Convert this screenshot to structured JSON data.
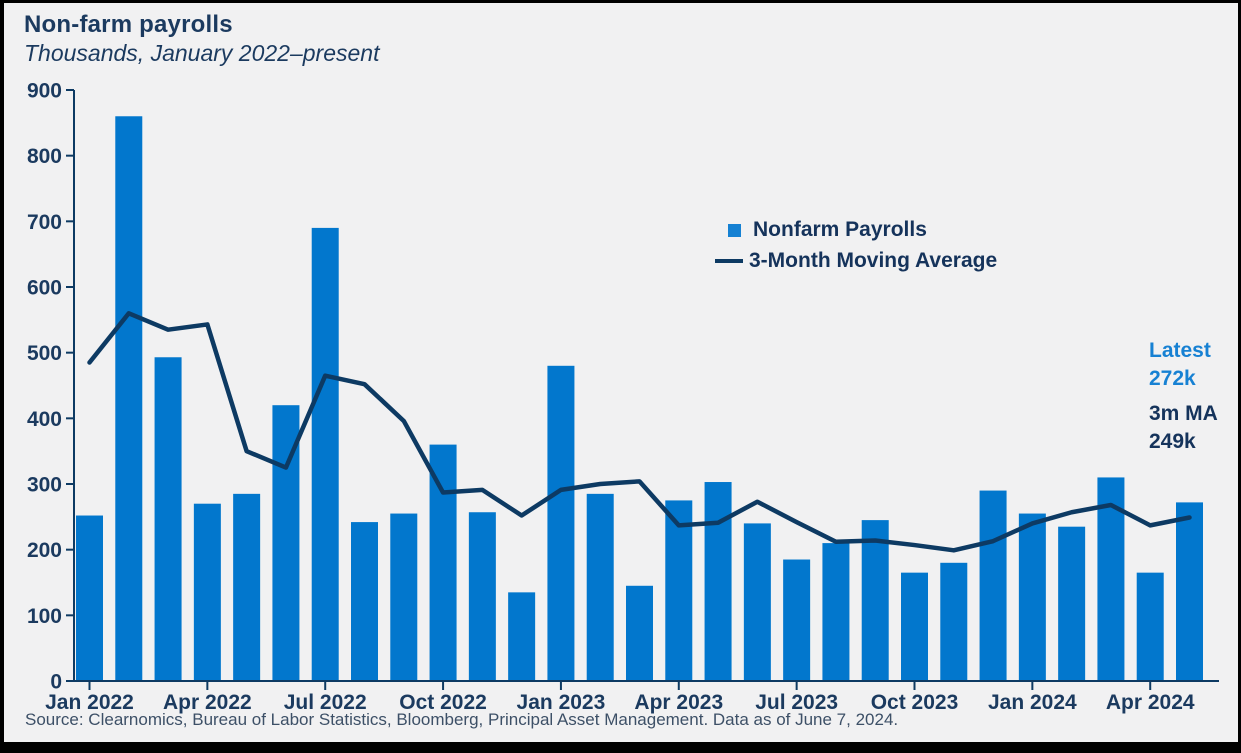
{
  "header": {
    "title": "Non-farm payrolls",
    "subtitle": "Thousands, January 2022–present"
  },
  "legend": {
    "bars_label": "Nonfarm Payrolls",
    "line_label": "3-Month Moving Average"
  },
  "annotations": {
    "latest_label": "Latest",
    "latest_value": "272k",
    "ma_label": "3m MA",
    "ma_value": "249k"
  },
  "footer": {
    "source": "Source: Clearnomics, Bureau of Labor Statistics, Bloomberg, Principal Asset Management. Data as of June 7, 2024."
  },
  "colors": {
    "background": "#f1f1f2",
    "bar": "#0277cd",
    "line": "#0d3a63",
    "axis": "#0d3a63",
    "navy_text": "#1b3a5f",
    "accent_text": "#1781d3",
    "source_text": "#3d5067",
    "frame": "#000000"
  },
  "chart_data": {
    "type": "bar",
    "title": "Non-farm payrolls",
    "subtitle": "Thousands, January 2022–present",
    "units": "Thousands",
    "categories": [
      "Jan 2022",
      "Feb 2022",
      "Mar 2022",
      "Apr 2022",
      "May 2022",
      "Jun 2022",
      "Jul 2022",
      "Aug 2022",
      "Sep 2022",
      "Oct 2022",
      "Nov 2022",
      "Dec 2022",
      "Jan 2023",
      "Feb 2023",
      "Mar 2023",
      "Apr 2023",
      "May 2023",
      "Jun 2023",
      "Jul 2023",
      "Aug 2023",
      "Sep 2023",
      "Oct 2023",
      "Nov 2023",
      "Dec 2023",
      "Jan 2024",
      "Feb 2024",
      "Mar 2024",
      "Apr 2024",
      "May 2024"
    ],
    "series": [
      {
        "name": "Nonfarm Payrolls",
        "type": "bar",
        "values": [
          252,
          860,
          493,
          270,
          285,
          420,
          690,
          242,
          255,
          360,
          257,
          135,
          480,
          285,
          145,
          275,
          303,
          240,
          185,
          210,
          245,
          165,
          180,
          290,
          255,
          235,
          310,
          165,
          272
        ]
      },
      {
        "name": "3-Month Moving Average",
        "type": "line",
        "values": [
          485,
          560,
          535,
          543,
          350,
          325,
          465,
          452,
          396,
          287,
          291,
          252,
          291,
          300,
          304,
          237,
          241,
          273,
          242,
          212,
          214,
          207,
          199,
          213,
          240,
          257,
          268,
          237,
          249
        ]
      }
    ],
    "ylim": [
      0,
      900
    ],
    "y_tick_step": 100,
    "x_tick_labels": [
      "Jan 2022",
      "Apr 2022",
      "Jul 2022",
      "Oct 2022",
      "Jan 2023",
      "Apr 2023",
      "Jul 2023",
      "Oct 2023",
      "Jan 2024",
      "Apr 2024"
    ],
    "x_tick_every_n": 3,
    "grid": false,
    "legend_position": "upper-middle-right",
    "latest_value": 272,
    "latest_ma_value": 249
  }
}
